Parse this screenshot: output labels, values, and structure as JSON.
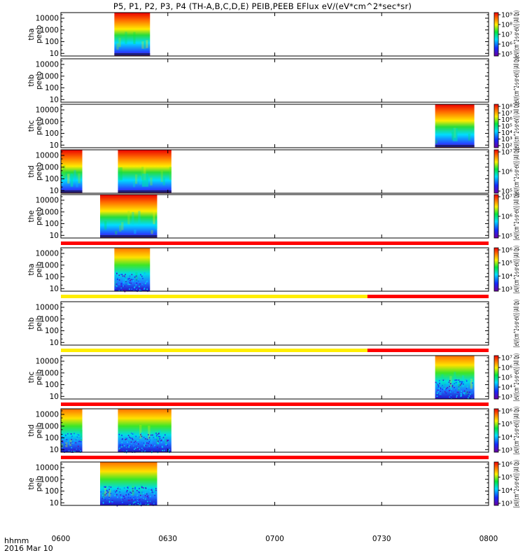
{
  "title": "P5, P1, P2, P3, P4 (TH-A,B,C,D,E) PEIB,PEEB EFlux eV/(eV*cm^2*sec*sr)",
  "footer": {
    "time_label": "hhmm",
    "date_label": "2016 Mar 10"
  },
  "colors": {
    "flag_red": "#ff0000",
    "flag_yellow": "#ffee00",
    "axis": "#000000"
  },
  "chart_data": {
    "type": "heatmap",
    "x_unit": "hhmm",
    "xlim": [
      "0600",
      "0800"
    ],
    "x_ticks": [
      "0600",
      "0630",
      "0700",
      "0730",
      "0800"
    ],
    "ylim": [
      6,
      30000
    ],
    "y_scale": "log",
    "y_ticks": [
      "10",
      "100",
      "1000",
      "10000"
    ],
    "panels": [
      {
        "probe": "tha",
        "product": "peeb",
        "label": [
          "tha",
          "peeb"
        ],
        "coverage": [
          [
            "0615",
            "0625"
          ]
        ],
        "cmin_exp": 5,
        "cmax_exp": 9,
        "cbar_ticks": [
          "10⁹",
          "10⁸",
          "10⁷",
          "10⁶",
          "10⁵"
        ],
        "cbar_title": "[eV/(cm^2-s-sr-eV)] (All Qs)",
        "flag": null
      },
      {
        "probe": "thb",
        "product": "peeb",
        "label": [
          "thb",
          "peeb"
        ],
        "coverage": [],
        "cmin_exp": null,
        "cmax_exp": null,
        "cbar_ticks": [],
        "cbar_title": "[eV/(cm^2-s-sr-eV)] (All Qs)",
        "flag": null
      },
      {
        "probe": "thc",
        "product": "peeb",
        "label": [
          "thc",
          "peeb"
        ],
        "coverage": [
          [
            "0745",
            "0756"
          ]
        ],
        "cmin_exp": 2,
        "cmax_exp": 8,
        "cbar_ticks": [
          "10⁸",
          "10⁷",
          "10⁶",
          "10⁵",
          "10⁴",
          "10³",
          "10²"
        ],
        "cbar_title": "[eV/(cm^2-s-sr-eV)] (All Qs)",
        "flag": null
      },
      {
        "probe": "thd",
        "product": "peeb",
        "label": [
          "thd",
          "peeb"
        ],
        "coverage": [
          [
            "0600",
            "0606"
          ],
          [
            "0616",
            "0631"
          ]
        ],
        "cmin_exp": 5,
        "cmax_exp": 8,
        "cbar_ticks": [
          "10⁷",
          "10⁶",
          "10⁵"
        ],
        "cbar_title": "[eV/(cm^2-s-sr-eV)] (All Qs)",
        "flag": null
      },
      {
        "probe": "the",
        "product": "peeb",
        "label": [
          "the",
          "peeb"
        ],
        "coverage": [
          [
            "0611",
            "0627"
          ]
        ],
        "cmin_exp": 5,
        "cmax_exp": 8,
        "cbar_ticks": [
          "10⁷",
          "10⁶",
          "10⁵"
        ],
        "cbar_title": "[eV/(cm^2-s-sr-eV)] (All Qs)",
        "flag": [
          {
            "from": "0600",
            "to": "0800",
            "color": "red"
          }
        ]
      },
      {
        "probe": "tha",
        "product": "peib",
        "label": [
          "tha",
          "peib"
        ],
        "coverage": [
          [
            "0615",
            "0625"
          ]
        ],
        "cmin_exp": 3,
        "cmax_exp": 6,
        "cbar_ticks": [
          "10⁶",
          "10⁵",
          "10⁴",
          "10³"
        ],
        "cbar_title": "[eV/(cm^2-s-sr-eV)] (All Qs)",
        "flag": [
          {
            "from": "0600",
            "to": "0726",
            "color": "yellow"
          },
          {
            "from": "0726",
            "to": "0800",
            "color": "red"
          }
        ]
      },
      {
        "probe": "thb",
        "product": "peib",
        "label": [
          "thb",
          "peib"
        ],
        "coverage": [],
        "cmin_exp": null,
        "cmax_exp": null,
        "cbar_ticks": [],
        "cbar_title": "[eV/(cm^2-s-sr-eV)] (All Qs)",
        "flag": [
          {
            "from": "0600",
            "to": "0726",
            "color": "yellow"
          },
          {
            "from": "0726",
            "to": "0800",
            "color": "red"
          }
        ]
      },
      {
        "probe": "thc",
        "product": "peib",
        "label": [
          "thc",
          "peib"
        ],
        "coverage": [
          [
            "0745",
            "0756"
          ]
        ],
        "cmin_exp": 3,
        "cmax_exp": 7,
        "cbar_ticks": [
          "10⁷",
          "10⁶",
          "10⁵",
          "10⁴",
          "10³"
        ],
        "cbar_title": "[eV/(cm^2-s-sr-eV)] (All Qs)",
        "flag": [
          {
            "from": "0600",
            "to": "0800",
            "color": "red"
          }
        ]
      },
      {
        "probe": "thd",
        "product": "peib",
        "label": [
          "thd",
          "peib"
        ],
        "coverage": [
          [
            "0600",
            "0606"
          ],
          [
            "0616",
            "0631"
          ]
        ],
        "cmin_exp": 3,
        "cmax_exp": 6,
        "cbar_ticks": [
          "10⁶",
          "10⁵",
          "10⁴",
          "10³"
        ],
        "cbar_title": "[eV/(cm^2-s-sr-eV)] (All Qs)",
        "flag": [
          {
            "from": "0600",
            "to": "0800",
            "color": "red"
          }
        ]
      },
      {
        "probe": "the",
        "product": "peib",
        "label": [
          "the",
          "peib"
        ],
        "coverage": [
          [
            "0611",
            "0627"
          ]
        ],
        "cmin_exp": 3,
        "cmax_exp": 6,
        "cbar_ticks": [
          "10⁶",
          "10⁵",
          "10⁴",
          "10³"
        ],
        "cbar_title": "[eV/(cm^2-s-sr-eV)] (All Qs)",
        "flag": null
      }
    ]
  }
}
